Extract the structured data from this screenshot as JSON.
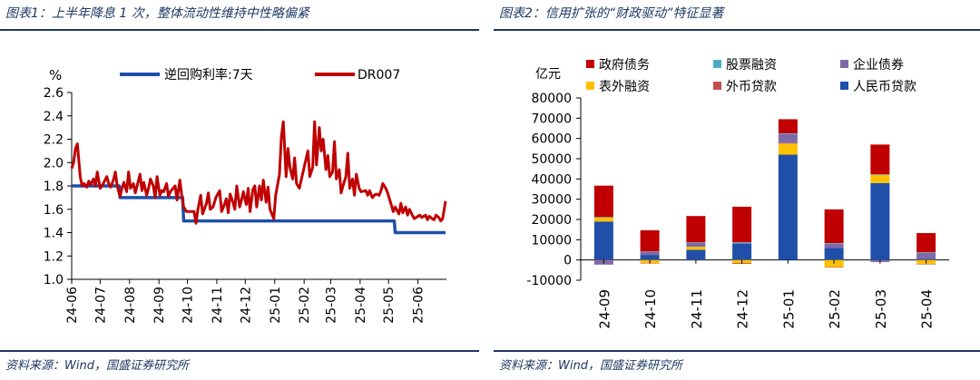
{
  "left": {
    "title": "图表1：上半年降息 1 次，整体流动性维持中性略偏紧",
    "source": "资料来源：Wind，国盛证券研究所"
  },
  "right": {
    "title": "图表2：信用扩张的“财政驱动”特征显著",
    "source": "资料来源：Wind，国盛证券研究所"
  },
  "chart_data": [
    {
      "type": "line",
      "unit_label": "%",
      "ylim": [
        1.0,
        2.6
      ],
      "yticks": [
        1.0,
        1.2,
        1.4,
        1.6,
        1.8,
        2.0,
        2.2,
        2.4,
        2.6
      ],
      "x_tick_labels": [
        "24-06",
        "24-07",
        "24-08",
        "24-09",
        "24-10",
        "24-11",
        "24-12",
        "25-01",
        "25-02",
        "25-03",
        "25-04",
        "25-05",
        "25-06"
      ],
      "legend_placement": "top",
      "colors": {
        "repo": "#1f4fa8",
        "dr007": "#c00000"
      },
      "series": [
        {
          "name": "逆回购利率:7天",
          "x": [
            "24-06-01",
            "24-07-21",
            "24-07-22",
            "24-09-26",
            "24-09-27",
            "25-05-07",
            "25-05-08",
            "25-06-30"
          ],
          "values": [
            1.8,
            1.8,
            1.7,
            1.7,
            1.5,
            1.5,
            1.4,
            1.4
          ]
        },
        {
          "name": "DR007",
          "x": [
            "24-06-01",
            "24-06-03",
            "24-06-05",
            "24-06-07",
            "24-06-10",
            "24-06-12",
            "24-06-14",
            "24-06-17",
            "24-06-19",
            "24-06-21",
            "24-06-24",
            "24-06-26",
            "24-06-28",
            "24-07-01",
            "24-07-03",
            "24-07-05",
            "24-07-08",
            "24-07-10",
            "24-07-12",
            "24-07-15",
            "24-07-17",
            "24-07-19",
            "24-07-22",
            "24-07-24",
            "24-07-26",
            "24-07-29",
            "24-07-31",
            "24-08-02",
            "24-08-05",
            "24-08-07",
            "24-08-09",
            "24-08-12",
            "24-08-14",
            "24-08-16",
            "24-08-19",
            "24-08-21",
            "24-08-23",
            "24-08-26",
            "24-08-28",
            "24-08-30",
            "24-09-02",
            "24-09-04",
            "24-09-06",
            "24-09-09",
            "24-09-11",
            "24-09-13",
            "24-09-18",
            "24-09-20",
            "24-09-23",
            "24-09-25",
            "24-09-27",
            "24-09-30",
            "24-10-08",
            "24-10-10",
            "24-10-12",
            "24-10-15",
            "24-10-17",
            "24-10-21",
            "24-10-23",
            "24-10-25",
            "24-10-28",
            "24-10-31",
            "24-11-04",
            "24-11-06",
            "24-11-08",
            "24-11-11",
            "24-11-13",
            "24-11-15",
            "24-11-18",
            "24-11-20",
            "24-11-22",
            "24-11-25",
            "24-11-27",
            "24-11-29",
            "24-12-02",
            "24-12-04",
            "24-12-06",
            "24-12-09",
            "24-12-11",
            "24-12-13",
            "24-12-16",
            "24-12-18",
            "24-12-20",
            "24-12-23",
            "24-12-25",
            "24-12-27",
            "24-12-31",
            "25-01-02",
            "25-01-06",
            "25-01-08",
            "25-01-10",
            "25-01-13",
            "25-01-15",
            "25-01-17",
            "25-01-20",
            "25-01-22",
            "25-01-24",
            "25-01-27",
            "25-02-05",
            "25-02-07",
            "25-02-10",
            "25-02-12",
            "25-02-14",
            "25-02-17",
            "25-02-19",
            "25-02-21",
            "25-02-24",
            "25-02-26",
            "25-02-28",
            "25-03-03",
            "25-03-05",
            "25-03-07",
            "25-03-10",
            "25-03-12",
            "25-03-14",
            "25-03-17",
            "25-03-19",
            "25-03-21",
            "25-03-24",
            "25-03-26",
            "25-03-28",
            "25-03-31",
            "25-04-02",
            "25-04-07",
            "25-04-09",
            "25-04-11",
            "25-04-14",
            "25-04-16",
            "25-04-18",
            "25-04-21",
            "25-04-23",
            "25-04-25",
            "25-04-28",
            "25-04-30",
            "25-05-06",
            "25-05-08",
            "25-05-12",
            "25-05-14",
            "25-05-16",
            "25-05-19",
            "25-05-21",
            "25-05-23",
            "25-05-26",
            "25-05-28",
            "25-06-03",
            "25-06-05",
            "25-06-09",
            "25-06-11",
            "25-06-13",
            "25-06-16",
            "25-06-18",
            "25-06-20",
            "25-06-23",
            "25-06-25",
            "25-06-27",
            "25-06-30"
          ],
          "values": [
            1.95,
            2.0,
            2.12,
            2.16,
            1.88,
            1.8,
            1.82,
            1.79,
            1.84,
            1.81,
            1.86,
            1.8,
            1.92,
            1.78,
            1.8,
            1.83,
            1.88,
            1.82,
            1.79,
            1.85,
            1.92,
            1.8,
            1.71,
            1.78,
            1.83,
            1.75,
            1.92,
            1.78,
            1.82,
            1.74,
            1.8,
            1.9,
            1.76,
            1.83,
            1.72,
            1.78,
            1.86,
            1.8,
            1.7,
            1.88,
            1.72,
            1.76,
            1.75,
            1.82,
            1.71,
            1.75,
            1.8,
            1.68,
            1.85,
            1.72,
            1.62,
            1.58,
            1.58,
            1.48,
            1.6,
            1.72,
            1.56,
            1.65,
            1.74,
            1.6,
            1.62,
            1.7,
            1.76,
            1.58,
            1.62,
            1.69,
            1.57,
            1.73,
            1.66,
            1.6,
            1.8,
            1.62,
            1.68,
            1.75,
            1.64,
            1.78,
            1.58,
            1.77,
            1.8,
            1.62,
            1.8,
            1.68,
            1.85,
            1.66,
            1.79,
            1.6,
            1.52,
            1.72,
            1.9,
            2.22,
            2.35,
            1.88,
            2.12,
            1.96,
            1.86,
            2.04,
            1.82,
            1.78,
            2.1,
            1.88,
            1.96,
            2.35,
            1.98,
            2.3,
            2.1,
            2.2,
            1.94,
            2.06,
            1.88,
            1.92,
            2.18,
            1.86,
            1.94,
            1.74,
            1.8,
            1.88,
            2.08,
            1.78,
            1.86,
            1.72,
            1.9,
            1.78,
            1.75,
            1.76,
            1.72,
            1.76,
            1.7,
            1.72,
            1.73,
            1.72,
            1.76,
            1.82,
            1.78,
            1.74,
            1.58,
            1.62,
            1.56,
            1.65,
            1.57,
            1.62,
            1.55,
            1.6,
            1.55,
            1.52,
            1.55,
            1.53,
            1.55,
            1.51,
            1.54,
            1.52,
            1.51,
            1.55,
            1.53,
            1.5,
            1.52,
            1.67
          ]
        }
      ]
    },
    {
      "type": "bar",
      "stacked": true,
      "unit_label": "亿元",
      "ylim": [
        -10000,
        80000
      ],
      "yticks": [
        -10000,
        0,
        10000,
        20000,
        30000,
        40000,
        50000,
        60000,
        70000,
        80000
      ],
      "categories": [
        "24-09",
        "24-10",
        "24-11",
        "24-12",
        "25-01",
        "25-02",
        "25-03",
        "25-04"
      ],
      "legend_placement": "top",
      "series": [
        {
          "name": "人民币贷款",
          "color": "#1f4fa8",
          "values": [
            19000,
            2500,
            5000,
            8000,
            52000,
            6000,
            38000,
            500
          ]
        },
        {
          "name": "表外融资",
          "color": "#ffc000",
          "values": [
            2000,
            -1500,
            1500,
            -1500,
            5500,
            -3500,
            4000,
            -2000
          ]
        },
        {
          "name": "外币贷款",
          "color": "#c0504d",
          "values": [
            -300,
            -200,
            -100,
            -400,
            200,
            -200,
            0,
            -200
          ]
        },
        {
          "name": "企业债券",
          "color": "#7f6aa8",
          "values": [
            -2000,
            1500,
            2000,
            500,
            4500,
            2000,
            -1000,
            3000
          ]
        },
        {
          "name": "股票融资",
          "color": "#4bacc6",
          "values": [
            200,
            200,
            200,
            300,
            300,
            300,
            300,
            300
          ]
        },
        {
          "name": "政府债务",
          "color": "#c00000",
          "values": [
            15500,
            10500,
            13000,
            17500,
            7000,
            16700,
            14700,
            9500
          ]
        }
      ],
      "legend_order": [
        "政府债务",
        "股票融资",
        "企业债券",
        "表外融资",
        "外币贷款",
        "人民币贷款"
      ]
    }
  ]
}
